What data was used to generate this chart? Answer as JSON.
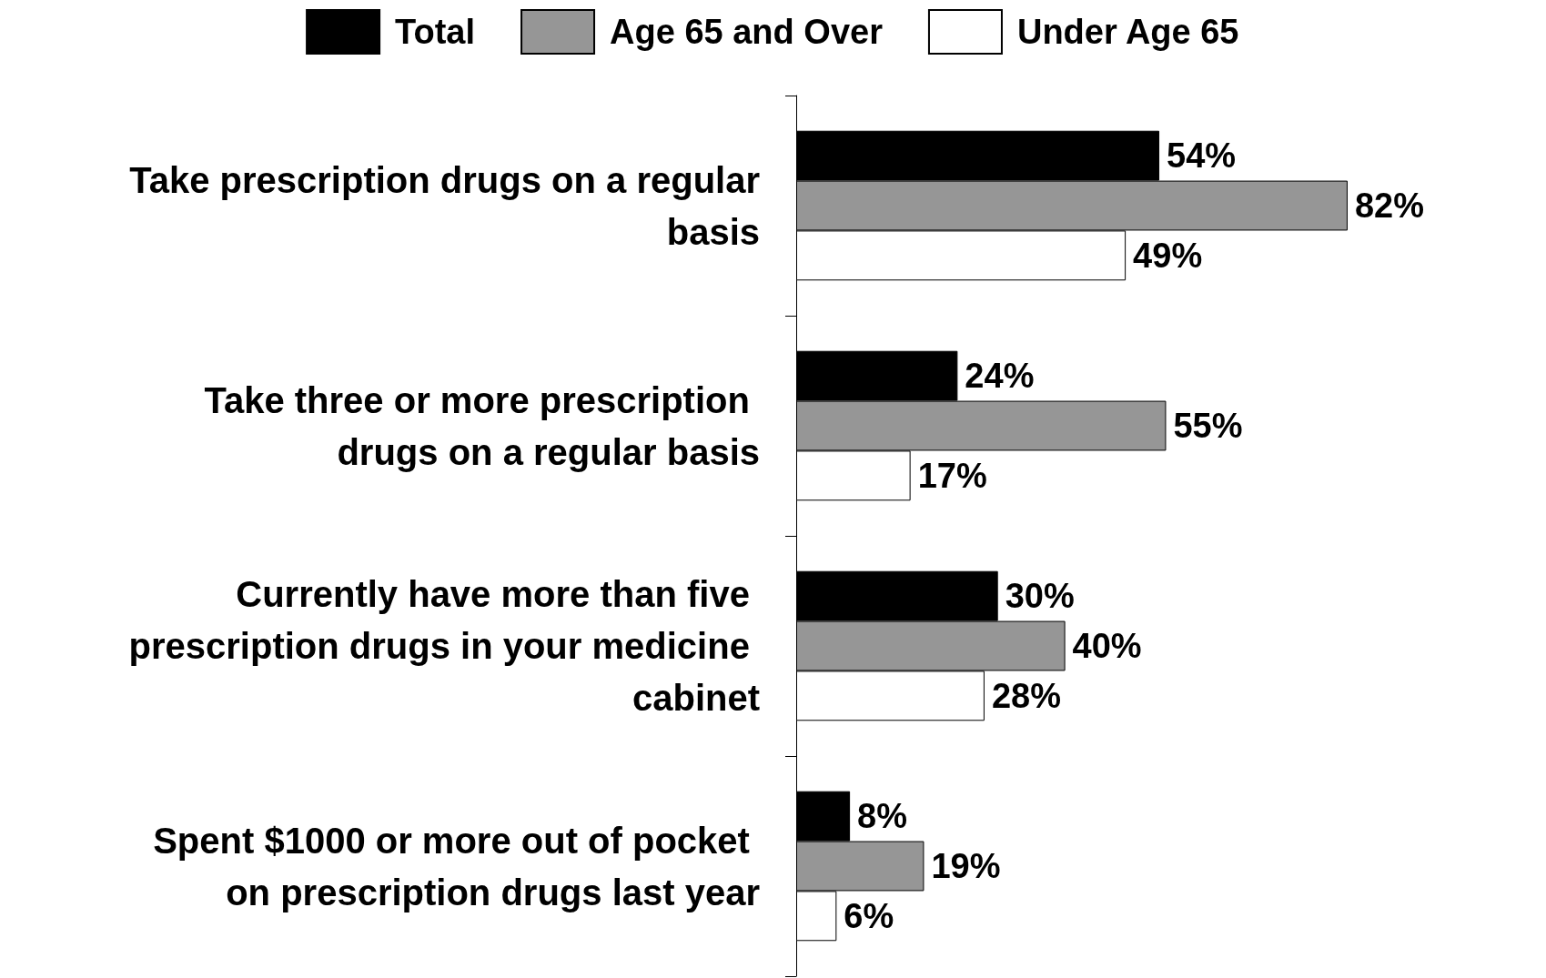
{
  "chart_data": {
    "type": "bar",
    "orientation": "horizontal",
    "legend": "top",
    "categories": [
      "Take prescription drugs on a regular basis",
      "Take three or more prescription drugs on a regular basis",
      "Currently have more than five prescription drugs in your medicine cabinet",
      "Spent $1000 or more out of pocket on prescription drugs last year"
    ],
    "series": [
      {
        "name": "Total",
        "color": "#000000",
        "values": [
          54,
          24,
          30,
          8
        ],
        "value_labels": [
          "54%",
          "24%",
          "30%",
          "8%"
        ]
      },
      {
        "name": "Age 65 and Over",
        "color": "#969696",
        "values": [
          82,
          55,
          40,
          19
        ],
        "value_labels": [
          "82%",
          "55%",
          "40%",
          "19%"
        ]
      },
      {
        "name": "Under Age 65",
        "color": "#ffffff",
        "values": [
          49,
          17,
          28,
          6
        ],
        "value_labels": [
          "49%",
          "17%",
          "28%",
          "6%"
        ]
      }
    ]
  }
}
